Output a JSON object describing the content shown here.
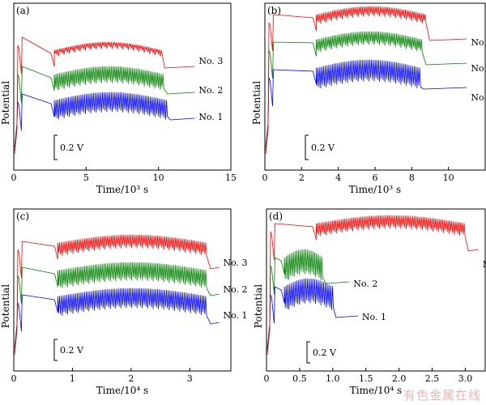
{
  "colors": {
    "no3": "#ff0000",
    "no2": "#008000",
    "no1": "#0000ff",
    "axis": "#000000"
  },
  "watermark": "有色金属在线",
  "chart_data": [
    {
      "type": "line",
      "panel": "(a)",
      "xlabel": "Time/10³ s",
      "ylabel": "Potential",
      "xlim": [
        0,
        15
      ],
      "xticks": [
        0,
        5,
        10,
        15
      ],
      "tick_labels": [
        "0",
        "5",
        "10",
        "15"
      ],
      "scale_bar": "0.2 V",
      "series": [
        {
          "name": "No. 3",
          "end_x": 12.5,
          "oscillation": [
            2.8,
            10.2
          ]
        },
        {
          "name": "No. 2",
          "end_x": 12.5,
          "oscillation": [
            2.8,
            10.4
          ]
        },
        {
          "name": "No. 1",
          "end_x": 12.5,
          "oscillation": [
            2.8,
            10.6
          ]
        }
      ]
    },
    {
      "type": "line",
      "panel": "(b)",
      "xlabel": "Time/10³ s",
      "ylabel": "Potential",
      "xlim": [
        0,
        12
      ],
      "xticks": [
        0,
        2,
        4,
        6,
        8,
        10
      ],
      "tick_labels": [
        "0",
        "2",
        "4",
        "6",
        "8",
        "10"
      ],
      "scale_bar": "0.2 V",
      "series": [
        {
          "name": "No. 3",
          "end_x": 11,
          "oscillation": [
            2.8,
            8.8
          ]
        },
        {
          "name": "No. 2",
          "end_x": 11,
          "oscillation": [
            2.8,
            8.6
          ]
        },
        {
          "name": "No. 1",
          "end_x": 11,
          "oscillation": [
            2.8,
            8.5
          ]
        }
      ]
    },
    {
      "type": "line",
      "panel": "(c)",
      "xlabel": "Time/10⁴ s",
      "ylabel": "Potential",
      "xlim": [
        0,
        3.7
      ],
      "xticks": [
        0,
        1,
        2,
        3
      ],
      "tick_labels": [
        "0",
        "1",
        "2",
        "3"
      ],
      "scale_bar": "0.2 V",
      "series": [
        {
          "name": "No. 3",
          "end_x": 3.5,
          "oscillation": [
            0.75,
            3.3
          ]
        },
        {
          "name": "No. 2",
          "end_x": 3.5,
          "oscillation": [
            0.75,
            3.3
          ]
        },
        {
          "name": "No. 1",
          "end_x": 3.5,
          "oscillation": [
            0.75,
            3.3
          ]
        }
      ]
    },
    {
      "type": "line",
      "panel": "(d)",
      "xlabel": "Time/10⁴ s",
      "ylabel": "Potential",
      "xlim": [
        0,
        3.3
      ],
      "xticks": [
        0,
        0.5,
        1.0,
        1.5,
        2.0,
        2.5,
        3.0
      ],
      "tick_labels": [
        "0",
        "0.5",
        "1.0",
        "1.5",
        "2.0",
        "2.5",
        "3.0"
      ],
      "scale_bar": "0.2 V",
      "series": [
        {
          "name": "No. 3",
          "end_x": 3.2,
          "oscillation": [
            0.75,
            3.0
          ]
        },
        {
          "name": "No. 2",
          "end_x": 1.25,
          "oscillation": [
            0.27,
            0.85
          ]
        },
        {
          "name": "No. 1",
          "end_x": 1.38,
          "oscillation": [
            0.27,
            1.0
          ]
        }
      ]
    }
  ]
}
